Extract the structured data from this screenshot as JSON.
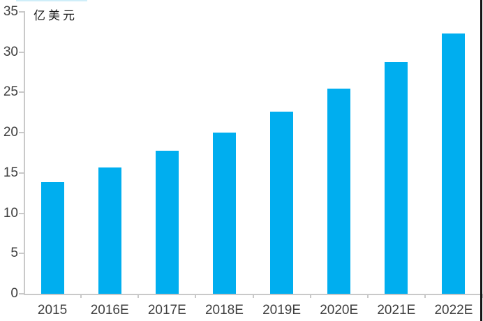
{
  "chart_data": {
    "type": "bar",
    "title": "",
    "ylabel": "亿美元",
    "xlabel": "",
    "categories": [
      "2015",
      "2016E",
      "2017E",
      "2018E",
      "2019E",
      "2020E",
      "2021E",
      "2022E"
    ],
    "values": [
      13.9,
      15.7,
      17.8,
      20.0,
      22.6,
      25.5,
      28.8,
      32.3
    ],
    "y_ticks": [
      0,
      5,
      10,
      15,
      20,
      25,
      30,
      35
    ],
    "ylim": [
      0,
      35
    ],
    "grid": false,
    "legend_position": "none",
    "bar_color": "#00AEEF",
    "axis_color": "#C9C9C9",
    "tick_label_color": "#3F3F3F",
    "unit_label_color": "#1A1A1A",
    "background_color": "#FFFFFF",
    "border_color": "#141414"
  }
}
